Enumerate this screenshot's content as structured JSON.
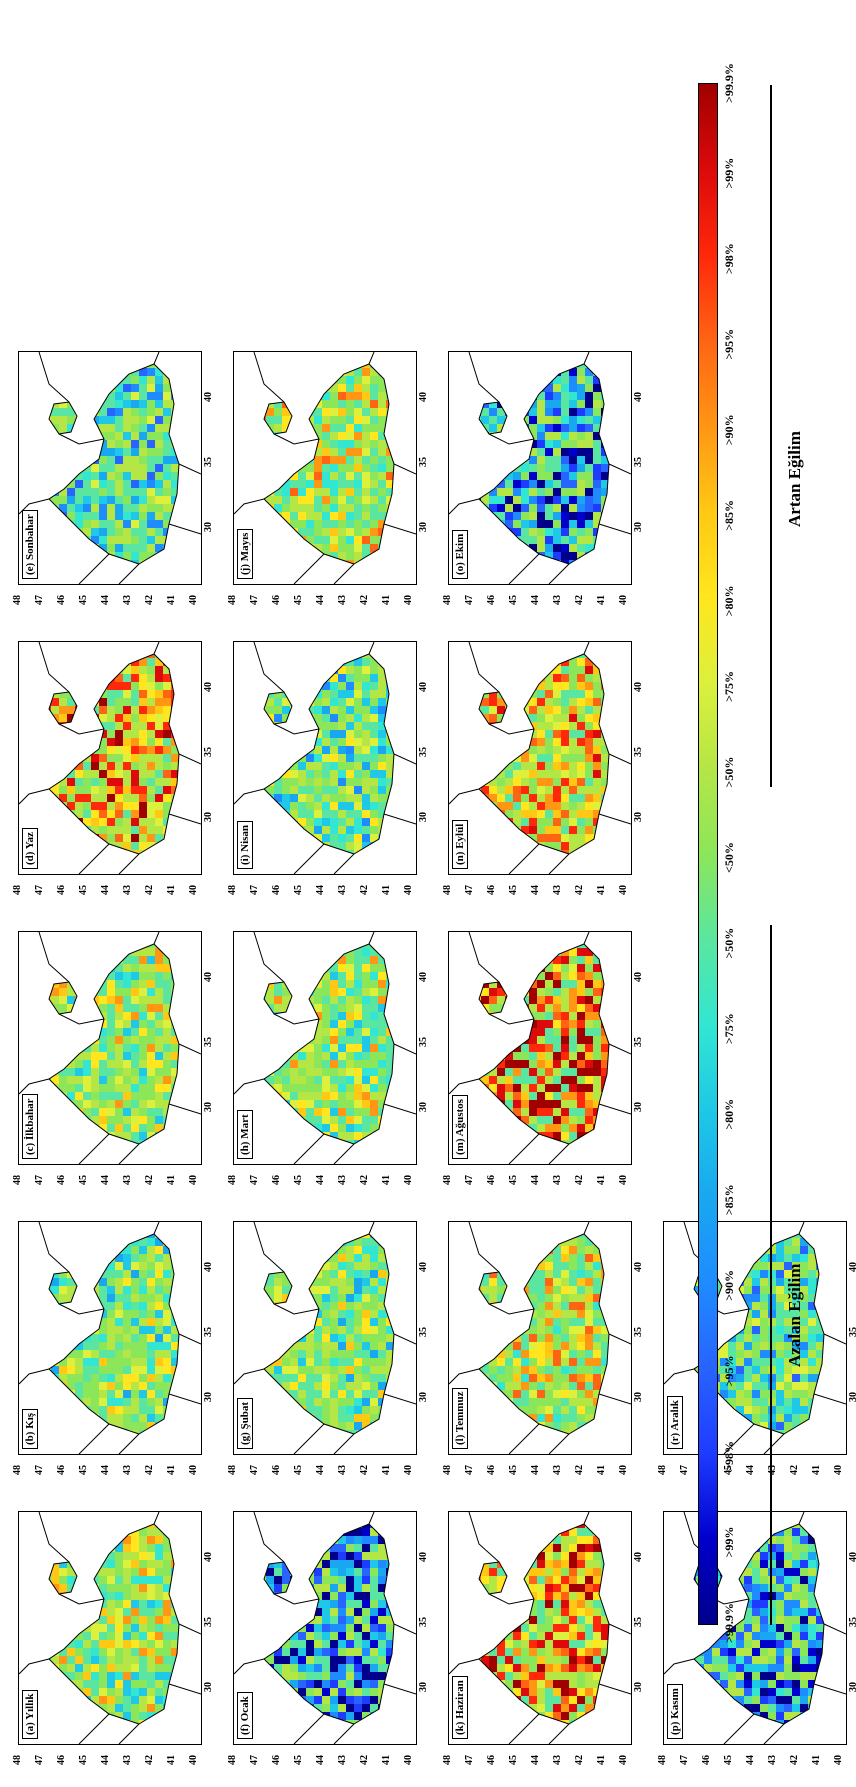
{
  "panels": [
    {
      "label": "(a) Yıllık"
    },
    {
      "label": "(b) Kış"
    },
    {
      "label": "(c) İlkbahar"
    },
    {
      "label": "(d) Yaz"
    },
    {
      "label": "(e) Sonbahar"
    },
    {
      "label": "(f) Ocak"
    },
    {
      "label": "(g) Şubat"
    },
    {
      "label": "(h) Mart"
    },
    {
      "label": "(i) Nisan"
    },
    {
      "label": "(j) Mayıs"
    },
    {
      "label": "(k) Haziran"
    },
    {
      "label": "(l) Temmuz"
    },
    {
      "label": "(m) Ağustos"
    },
    {
      "label": "(n) Eylül"
    },
    {
      "label": "(o) Ekim"
    },
    {
      "label": "(p) Kasım"
    },
    {
      "label": "(r) Aralık"
    }
  ],
  "axes": {
    "lat_ticks": [
      "48",
      "47",
      "46",
      "45",
      "44",
      "43",
      "42",
      "41",
      "40"
    ],
    "lon_ticks": [
      "30",
      "35",
      "40"
    ]
  },
  "colorbar": {
    "labels": [
      ">99.9%",
      ">99%",
      ">98%",
      ">95%",
      ">90%",
      ">85%",
      ">80%",
      ">75%",
      ">50%",
      "<50%",
      ">50%",
      ">75%",
      ">80%",
      ">85%",
      ">90%",
      ">95%",
      ">98%",
      ">99%",
      ">99.9%"
    ],
    "colors": [
      "#00008b",
      "#0000cd",
      "#1e3cff",
      "#2864ff",
      "#1e8cff",
      "#19a8f0",
      "#1ec8e6",
      "#32e6d2",
      "#5ae6a0",
      "#8ce65a",
      "#b4e646",
      "#dcf03c",
      "#ffe61e",
      "#ffc814",
      "#ff9614",
      "#ff6414",
      "#ff280a",
      "#dc0a0a",
      "#a00000"
    ],
    "left_title": "Azalan Eğilim",
    "right_title": "Artan Eğilim"
  }
}
